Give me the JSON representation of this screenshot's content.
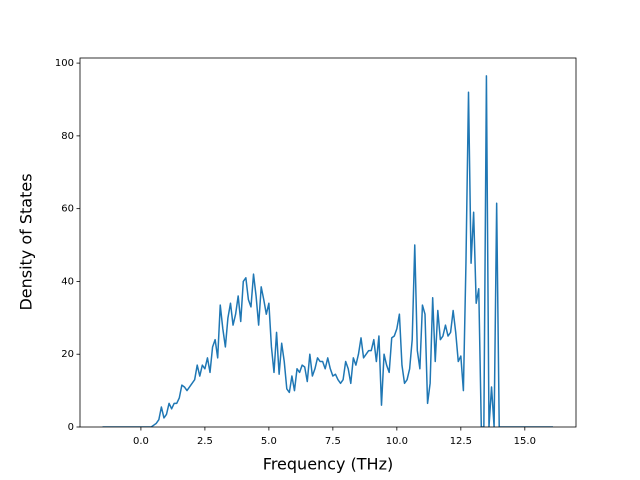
{
  "chart_data": {
    "type": "line",
    "xlabel": "Frequency (THz)",
    "ylabel": "Density of States",
    "x": [
      -1.5,
      0.4,
      0.5,
      0.6,
      0.7,
      0.8,
      0.9,
      1.0,
      1.1,
      1.2,
      1.3,
      1.4,
      1.5,
      1.6,
      1.7,
      1.8,
      1.9,
      2.0,
      2.1,
      2.2,
      2.3,
      2.4,
      2.5,
      2.6,
      2.7,
      2.8,
      2.9,
      3.0,
      3.1,
      3.2,
      3.3,
      3.4,
      3.5,
      3.6,
      3.7,
      3.8,
      3.9,
      4.0,
      4.1,
      4.2,
      4.3,
      4.4,
      4.5,
      4.6,
      4.7,
      4.8,
      4.9,
      5.0,
      5.1,
      5.2,
      5.3,
      5.4,
      5.5,
      5.6,
      5.7,
      5.8,
      5.9,
      6.0,
      6.1,
      6.2,
      6.3,
      6.4,
      6.5,
      6.6,
      6.7,
      6.8,
      6.9,
      7.0,
      7.1,
      7.2,
      7.3,
      7.4,
      7.5,
      7.6,
      7.7,
      7.8,
      7.9,
      8.0,
      8.1,
      8.2,
      8.3,
      8.4,
      8.5,
      8.6,
      8.7,
      8.8,
      8.9,
      9.0,
      9.1,
      9.2,
      9.3,
      9.4,
      9.5,
      9.6,
      9.7,
      9.8,
      9.9,
      10.0,
      10.1,
      10.2,
      10.3,
      10.4,
      10.5,
      10.6,
      10.7,
      10.8,
      10.9,
      11.0,
      11.1,
      11.2,
      11.3,
      11.4,
      11.5,
      11.6,
      11.7,
      11.8,
      11.9,
      12.0,
      12.1,
      12.2,
      12.3,
      12.4,
      12.5,
      12.6,
      12.7,
      12.8,
      12.9,
      13.0,
      13.1,
      13.2,
      13.3,
      13.4,
      13.5,
      13.6,
      13.7,
      13.8,
      13.9,
      14.0,
      16.1
    ],
    "values": [
      0,
      0,
      0.5,
      1,
      2,
      5.5,
      2.5,
      3.5,
      6.5,
      5,
      6.5,
      6.5,
      8,
      11.5,
      11,
      10,
      11,
      12,
      13,
      17,
      14,
      17,
      16,
      19,
      15,
      22,
      24,
      19,
      33.5,
      27,
      22,
      30,
      34,
      28,
      31,
      36,
      29,
      40,
      41,
      35,
      33,
      42,
      36,
      28,
      38.5,
      35,
      31,
      34,
      22,
      15,
      26,
      14.5,
      23,
      18,
      10.5,
      9.5,
      14,
      10,
      16,
      15,
      17,
      16.5,
      12.5,
      20,
      14,
      16,
      19,
      18,
      18,
      16,
      19,
      16,
      14,
      14.5,
      13,
      12,
      13,
      18,
      16,
      12,
      19,
      17,
      20,
      24.5,
      19,
      20,
      21,
      21,
      24,
      18,
      25,
      6,
      20,
      17,
      15,
      24.5,
      25,
      27,
      31,
      17,
      12,
      13,
      16,
      24,
      50,
      21,
      16,
      33.5,
      31,
      6.5,
      12,
      35.5,
      18,
      32,
      24,
      25,
      28,
      25,
      26,
      32,
      26,
      18,
      19.5,
      10,
      45,
      92,
      45,
      59,
      34,
      38,
      0,
      0,
      96.5,
      0,
      11,
      0,
      61.5,
      0,
      0
    ],
    "color": "#1f77b4",
    "xlim": [
      -2.38,
      17.0
    ],
    "xticks": [
      {
        "value": 0,
        "label": "0.0"
      },
      2.5,
      {
        "value": 5,
        "label": "5.0"
      },
      7.5,
      {
        "value": 10,
        "label": "10.0"
      },
      12.5,
      {
        "value": 15,
        "label": "15.0"
      }
    ],
    "ylim": [
      0,
      101.4
    ],
    "yticks": [
      0,
      20,
      40,
      60,
      80,
      100
    ],
    "grid": false
  }
}
